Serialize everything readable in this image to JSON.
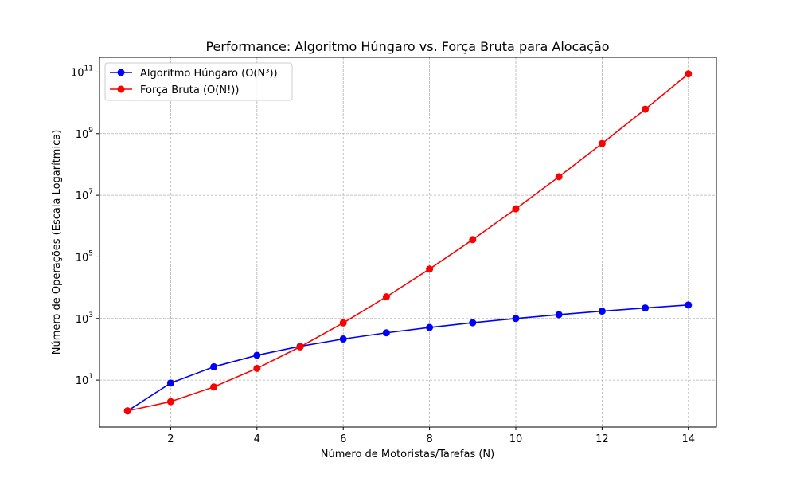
{
  "chart_data": {
    "type": "line",
    "title": "Performance: Algoritmo Húngaro vs. Força Bruta para Alocação",
    "xlabel": "Número de Motoristas/Tarefas (N)",
    "ylabel": "Número de Operações (Escala Logarítmica)",
    "xlim": [
      0.35,
      14.65
    ],
    "ylim": [
      0.3,
      300000000000
    ],
    "yscale": "log",
    "grid": true,
    "legend": "top-left",
    "x_ticks": [
      2,
      4,
      6,
      8,
      10,
      12,
      14
    ],
    "y_ticks": [
      {
        "value": 10,
        "base": "10",
        "exp": "1"
      },
      {
        "value": 1000,
        "base": "10",
        "exp": "3"
      },
      {
        "value": 100000,
        "base": "10",
        "exp": "5"
      },
      {
        "value": 10000000,
        "base": "10",
        "exp": "7"
      },
      {
        "value": 1000000000,
        "base": "10",
        "exp": "9"
      },
      {
        "value": 100000000000,
        "base": "10",
        "exp": "11"
      }
    ],
    "x": [
      1,
      2,
      3,
      4,
      5,
      6,
      7,
      8,
      9,
      10,
      11,
      12,
      13,
      14
    ],
    "series": [
      {
        "name": "Algoritmo Húngaro (O(N³))",
        "color": "#0000ff",
        "values": [
          1,
          8,
          27,
          64,
          125,
          216,
          343,
          512,
          729,
          1000,
          1331,
          1728,
          2197,
          2744
        ]
      },
      {
        "name": "Força Bruta (O(N!))",
        "color": "#ff0000",
        "values": [
          1,
          2,
          6,
          24,
          120,
          720,
          5040,
          40320,
          362880,
          3628800,
          39916800,
          479001600,
          6227020800,
          87178291200
        ]
      }
    ]
  }
}
